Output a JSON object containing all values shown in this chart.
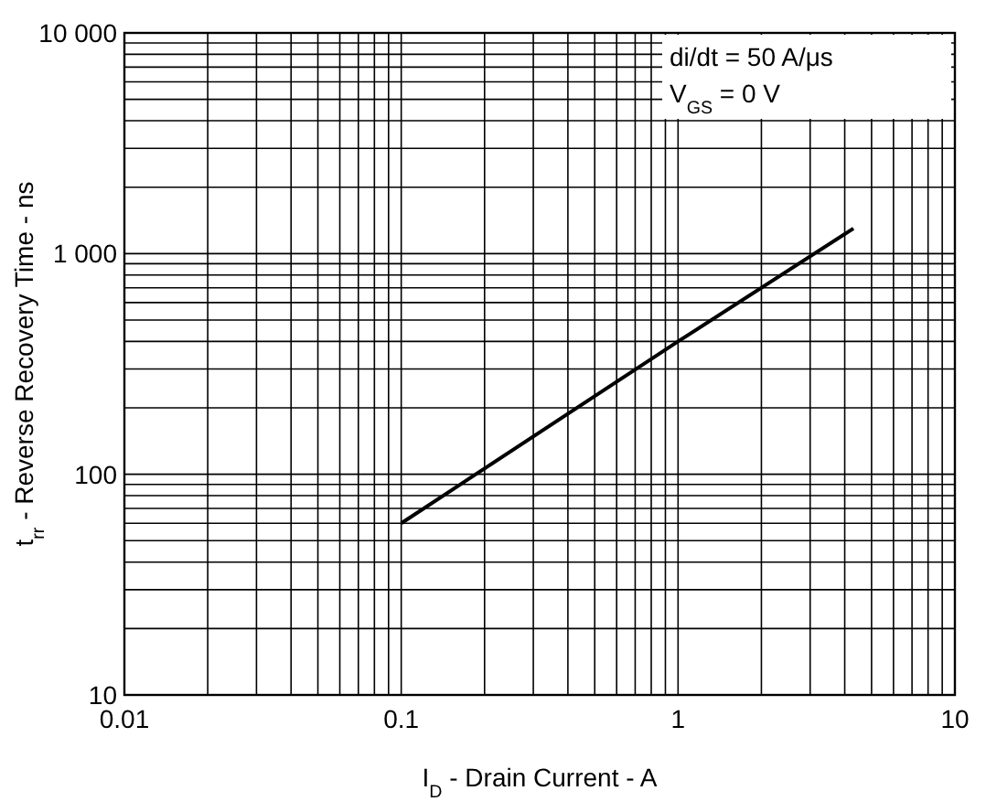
{
  "chart_data": {
    "type": "line",
    "xlabel": "I$_{D}$ - Drain Current - A",
    "ylabel": "t$_{rr}$ - Reverse Recovery Time - ns",
    "annotations": [
      "di/dt = 50 A/μs",
      "V$_{GS}$ = 0 V"
    ],
    "x": [
      0.1,
      1,
      4.3
    ],
    "series": [
      {
        "color": "#000000",
        "values": [
          60,
          400,
          1300
        ]
      }
    ],
    "xlim": [
      0.01,
      10
    ],
    "xticks": [
      0.01,
      0.1,
      1,
      10
    ],
    "ylim": [
      10,
      10000
    ],
    "yticks": [
      10,
      100,
      {
        "value": 1000,
        "label": "1 000"
      },
      {
        "value": 10000,
        "label": "10 000"
      }
    ],
    "log": "xy",
    "grid": true,
    "marker": "none",
    "line_style": "solid"
  }
}
